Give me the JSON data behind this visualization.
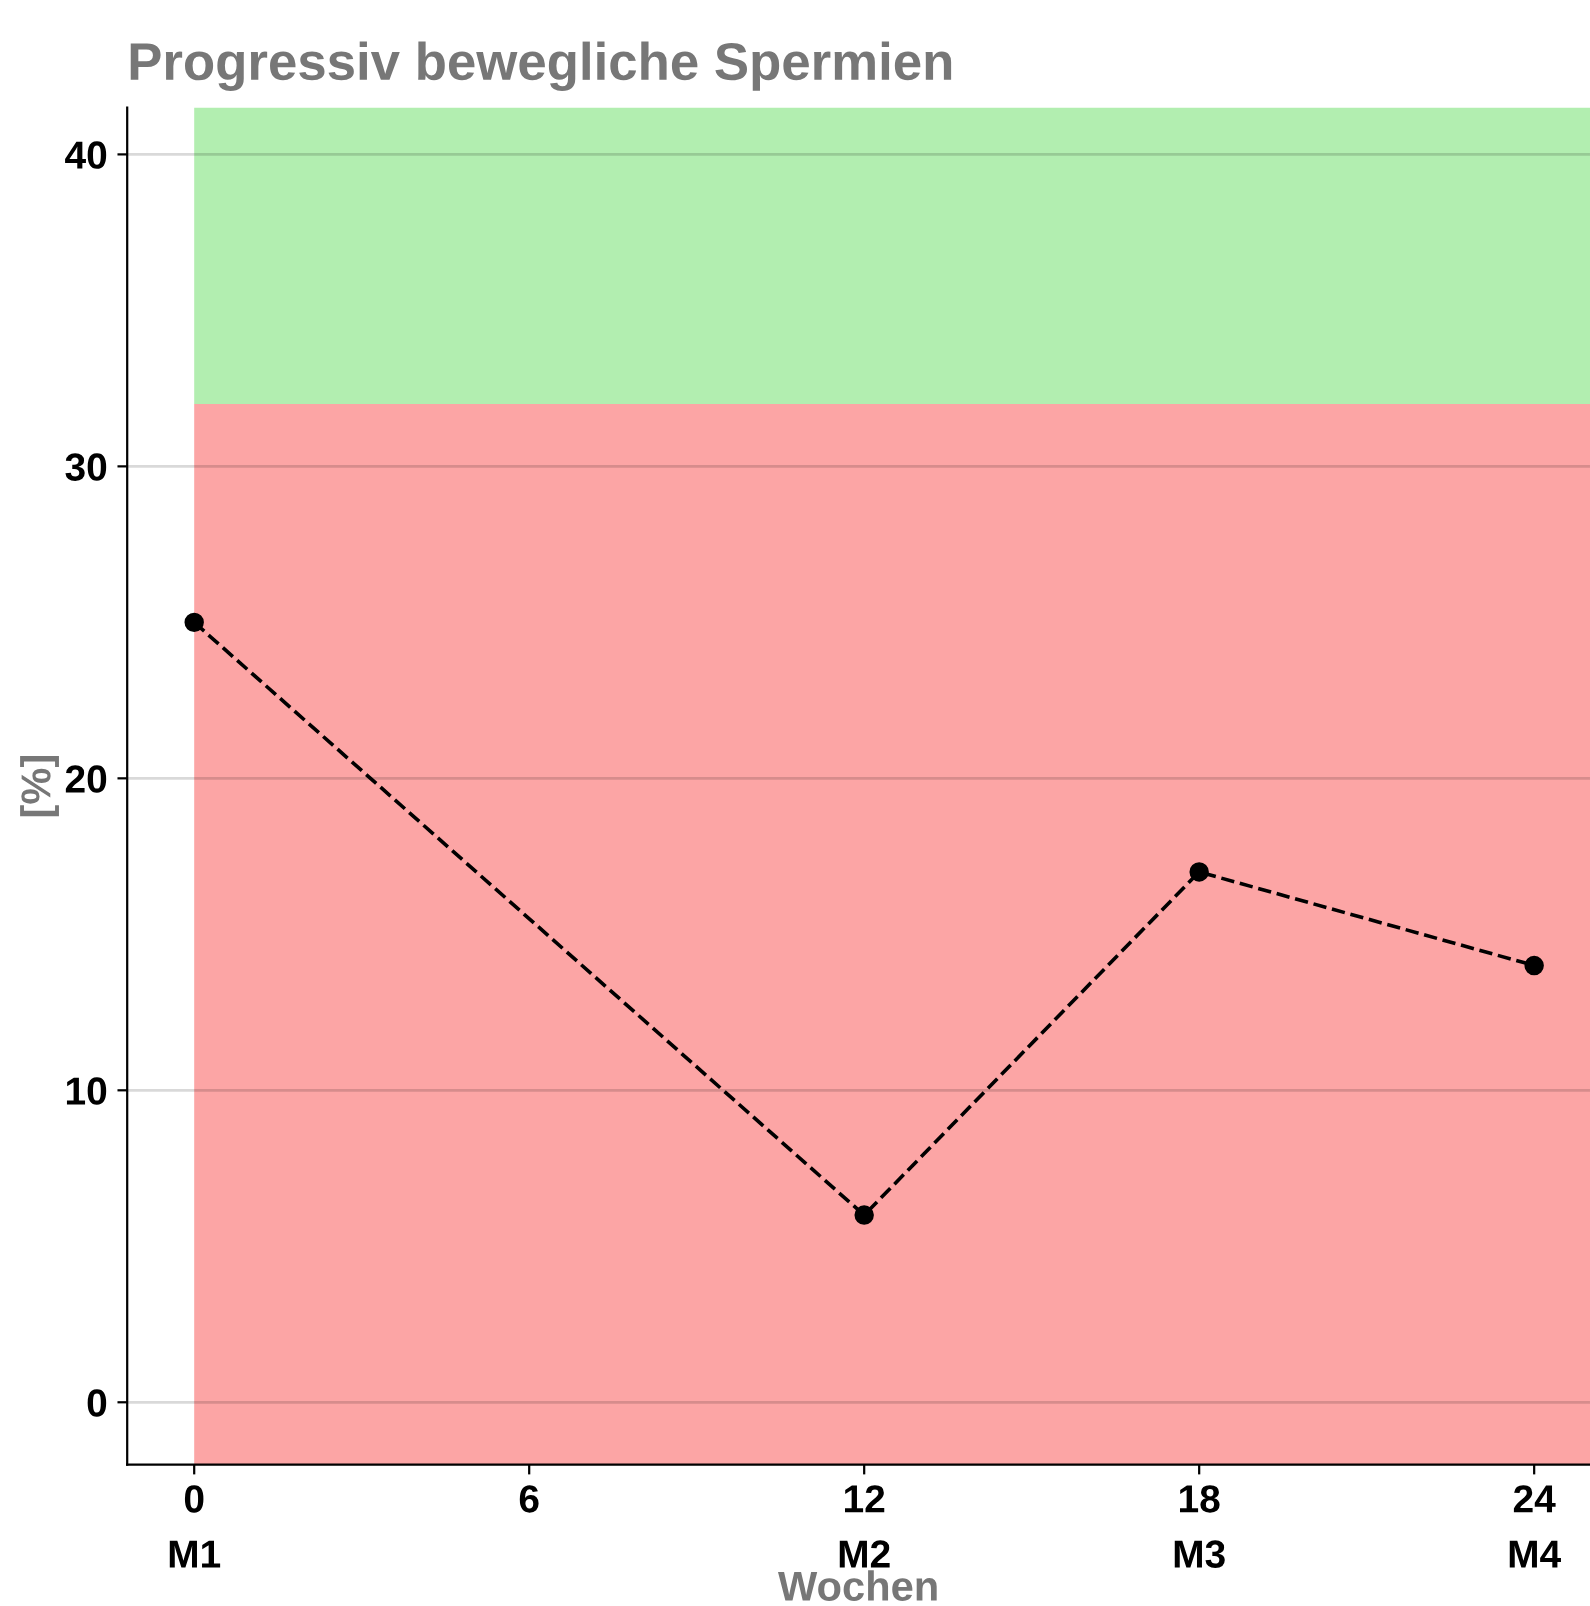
{
  "chart_data": {
    "type": "line",
    "title": "Progressiv bewegliche Spermien",
    "xlabel": "Wochen",
    "ylabel": "[%]",
    "x": [
      0,
      12,
      18,
      24
    ],
    "series": [
      {
        "color": "#000000",
        "values": [
          25,
          6,
          17,
          14
        ]
      }
    ],
    "marker": "circle",
    "line_style": "dashed",
    "xlim": [
      -1.2,
      25
    ],
    "ylim": [
      -2,
      41.5
    ],
    "xticks": [
      0,
      6,
      12,
      18,
      24
    ],
    "annotations": [
      "M1",
      "M2",
      "M3",
      "M4"
    ],
    "yticks": [
      0,
      10,
      20,
      30,
      40
    ],
    "grid": "y",
    "bands": [
      {
        "axis": "y",
        "from": -2,
        "to": 32,
        "color": "#fca5a5"
      },
      {
        "axis": "y",
        "from": 32,
        "to": 41.5,
        "color": "#b2eeb0"
      }
    ]
  }
}
